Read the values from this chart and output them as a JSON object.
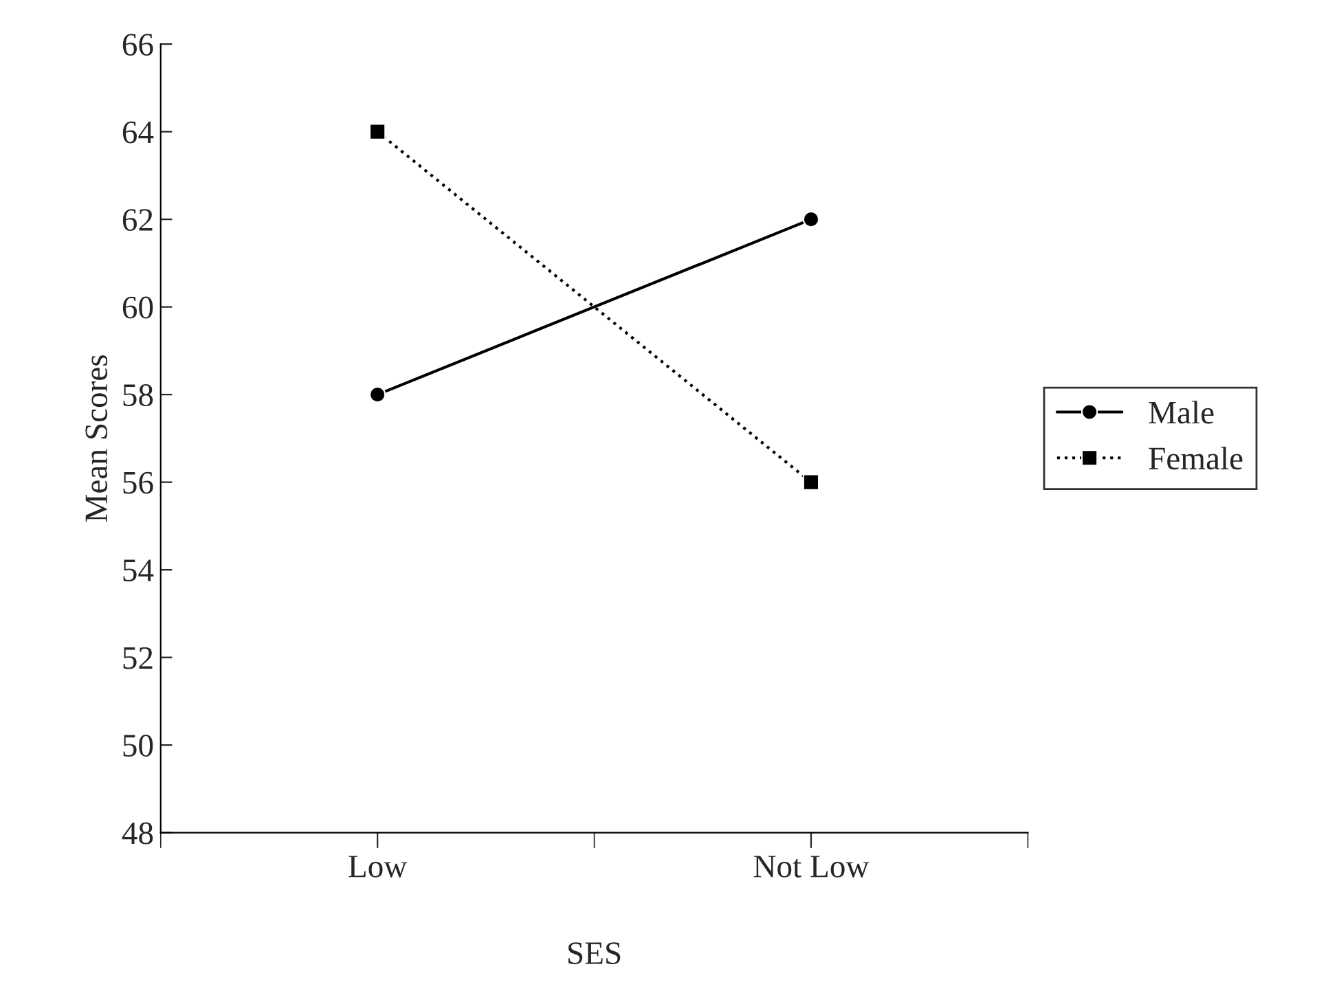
{
  "chart_data": {
    "type": "line",
    "xlabel": "SES",
    "ylabel": "Mean Scores",
    "categories": [
      "Low",
      "Not Low"
    ],
    "series": [
      {
        "name": "Male",
        "color": "#000000",
        "values": [
          58,
          62
        ],
        "marker": "circle",
        "line_style": "solid"
      },
      {
        "name": "Female",
        "color": "#000000",
        "values": [
          64,
          56
        ],
        "marker": "square",
        "line_style": "dotted"
      }
    ],
    "ylim": [
      48,
      66
    ],
    "yticks": [
      48,
      50,
      52,
      54,
      56,
      58,
      60,
      62,
      64,
      66
    ],
    "grid": false,
    "legend": "right"
  }
}
